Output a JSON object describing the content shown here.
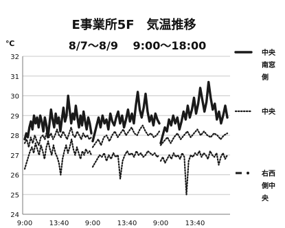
{
  "chart_data": {
    "type": "line",
    "title": "E事業所5F　気温推移",
    "subtitle": "8/7～8/9　 9:00～18:00",
    "unit_label": "℃",
    "ylim": [
      24,
      32
    ],
    "yticks": [
      24,
      25,
      26,
      27,
      28,
      29,
      30,
      31,
      32
    ],
    "x_tick_labels": [
      "9:00",
      "13:40",
      "9:00",
      "13:40",
      "9:00",
      "13:40"
    ],
    "grid": "horizontal",
    "legend_placement": "right",
    "series": [
      {
        "name": "中央南窓側",
        "style": "solid-thick",
        "color": "#1a1a1a",
        "segments": [
          [
            27.8,
            28.1,
            27.9,
            28.4,
            28.7,
            28.3,
            29.0,
            28.6,
            28.9,
            28.4,
            29.0,
            28.7,
            28.2,
            28.9,
            28.5,
            27.9,
            28.6,
            29.3,
            28.8,
            28.4,
            29.1,
            28.6,
            28.9,
            28.2,
            28.8,
            29.4,
            28.7,
            29.0,
            30.0,
            29.3,
            28.6,
            29.1,
            28.8,
            29.5,
            28.9,
            28.4,
            29.0,
            28.5,
            29.2,
            28.7,
            28.3,
            28.9,
            28.6,
            28.1
          ],
          [
            27.7,
            28.1,
            28.5,
            28.9,
            28.4,
            29.0,
            28.6,
            28.8,
            28.3,
            29.1,
            28.7,
            28.5,
            28.9,
            29.2,
            28.6,
            29.0,
            28.4,
            28.8,
            29.3,
            28.7,
            29.1,
            28.6,
            29.5,
            30.2,
            29.3,
            28.9,
            29.4,
            30.1,
            29.2,
            28.7,
            29.0,
            28.5,
            29.1,
            28.8,
            28.6
          ],
          [
            27.6,
            28.0,
            28.4,
            28.2,
            28.8,
            28.5,
            29.0,
            28.6,
            28.9,
            28.3,
            28.7,
            29.2,
            28.8,
            29.5,
            28.9,
            29.3,
            29.9,
            29.1,
            29.6,
            30.4,
            29.8,
            29.2,
            29.7,
            30.7,
            29.9,
            29.3,
            29.6,
            28.8,
            29.2,
            28.6,
            29.0,
            29.5,
            28.9
          ]
        ]
      },
      {
        "name": "中央",
        "style": "dotted",
        "color": "#1a1a1a",
        "segments": [
          [
            27.6,
            27.8,
            27.4,
            27.9,
            27.6,
            28.0,
            27.7,
            27.5,
            27.9,
            28.0,
            27.8,
            28.2,
            27.9,
            28.1,
            27.8,
            28.0,
            28.3,
            28.0,
            27.9,
            28.2,
            28.0,
            27.8,
            28.1,
            28.4,
            28.0,
            27.9,
            28.2,
            28.0,
            27.8,
            28.1,
            27.9,
            28.0,
            27.8,
            27.9
          ],
          [
            27.4,
            27.6,
            27.8,
            27.5,
            27.9,
            28.0,
            27.7,
            28.0,
            28.2,
            27.9,
            28.1,
            28.3,
            28.0,
            28.2,
            28.4,
            28.1,
            28.0,
            28.3,
            28.5,
            28.2,
            28.0,
            28.1,
            27.9,
            28.0,
            28.2
          ],
          [
            27.5,
            27.7,
            27.9,
            27.6,
            27.9,
            28.1,
            27.8,
            28.0,
            28.2,
            27.9,
            28.1,
            28.3,
            28.0,
            28.2,
            28.0,
            27.9,
            28.1,
            28.0,
            27.8,
            28.0,
            28.1
          ]
        ]
      },
      {
        "name": "右西側中央",
        "style": "dash-dot",
        "color": "#1a1a1a",
        "segments": [
          [
            26.3,
            26.6,
            26.9,
            27.2,
            27.4,
            27.1,
            27.6,
            27.3,
            27.0,
            27.5,
            27.2,
            26.8,
            27.4,
            27.7,
            27.3,
            27.0,
            27.5,
            27.1,
            26.9,
            26.6,
            26.0,
            26.8,
            27.2,
            27.5,
            27.1,
            27.4,
            27.8,
            27.3,
            27.0,
            27.4,
            27.1,
            26.8,
            27.2,
            27.0,
            27.3,
            27.1,
            27.2,
            27.0
          ],
          [
            26.4,
            26.6,
            26.8,
            27.0,
            26.9,
            27.1,
            26.7,
            27.0,
            26.8,
            27.1,
            26.9,
            27.0,
            25.8,
            26.7,
            27.0,
            27.2,
            27.0,
            27.1,
            26.9,
            27.2,
            27.0,
            27.1,
            26.9,
            27.0,
            27.2,
            27.1,
            27.0,
            27.1,
            26.9,
            27.0
          ],
          [
            26.7,
            26.9,
            26.6,
            26.8,
            27.0,
            26.8,
            27.1,
            26.9,
            27.0,
            26.8,
            27.1,
            26.9,
            25.0,
            26.7,
            27.0,
            26.9,
            27.1,
            27.0,
            27.2,
            26.9,
            27.1,
            27.0,
            26.8,
            27.2,
            27.0,
            26.9,
            27.1,
            26.5,
            26.9,
            27.1,
            26.8,
            27.0
          ]
        ]
      }
    ]
  }
}
